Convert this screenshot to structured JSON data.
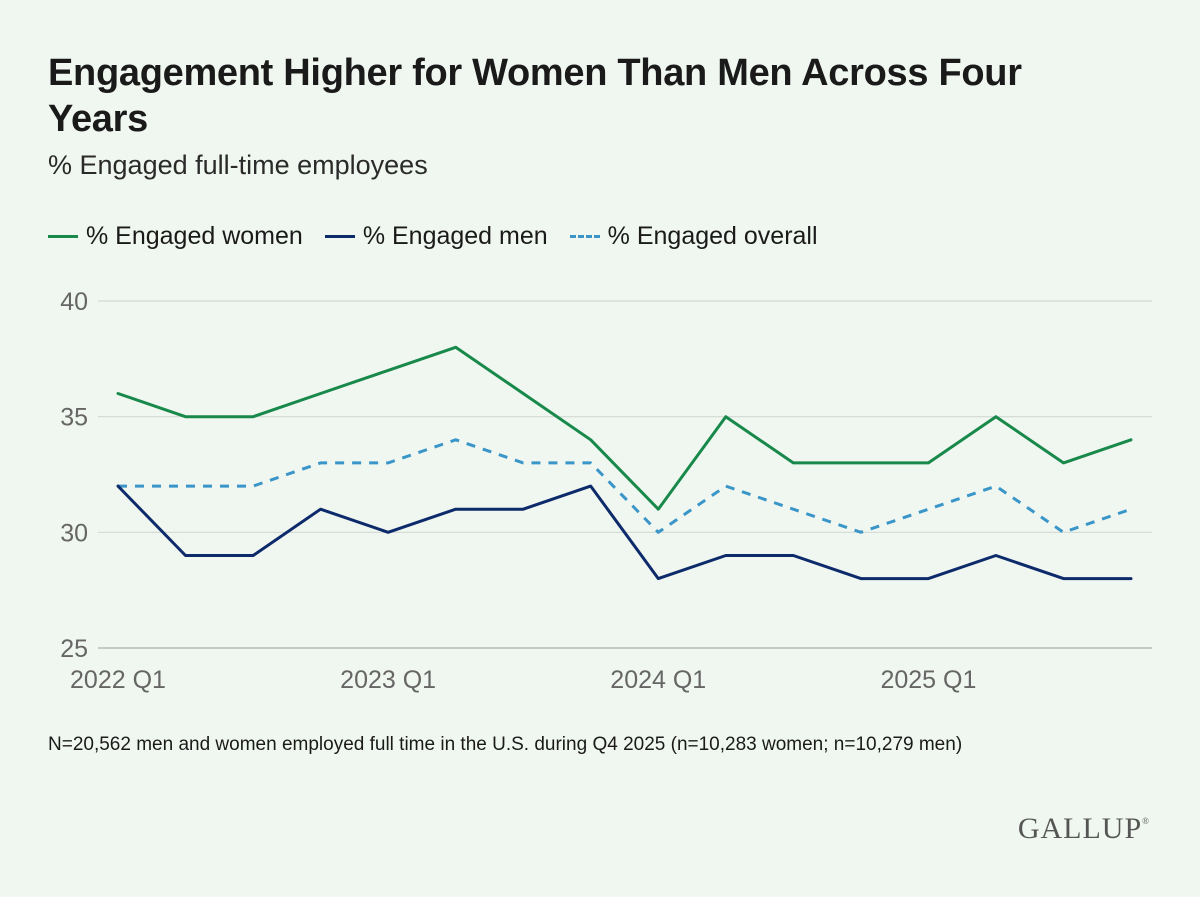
{
  "colors": {
    "women": "#18894a",
    "men": "#0d2a6b",
    "overall": "#3a95c8",
    "grid": "#d3d8d3",
    "tick_text": "#666666",
    "background": "#f0f7f0"
  },
  "chart_data": {
    "type": "line",
    "title": "Engagement Higher for Women Than Men Across Four Years",
    "subtitle": "% Engaged full-time employees",
    "x": [
      "2022 Q1",
      "2022 Q2",
      "2022 Q3",
      "2022 Q4",
      "2023 Q1",
      "2023 Q2",
      "2023 Q3",
      "2023 Q4",
      "2024 Q1",
      "2024 Q2",
      "2024 Q3",
      "2024 Q4",
      "2025 Q1",
      "2025 Q2",
      "2025 Q3",
      "2025 Q4"
    ],
    "x_ticks": [
      "2022 Q1",
      "2023 Q1",
      "2024 Q1",
      "2025 Q1"
    ],
    "x_tick_indices": [
      0,
      4,
      8,
      12
    ],
    "y_ticks": [
      25,
      30,
      35,
      40
    ],
    "ylim": [
      25,
      40
    ],
    "grid": true,
    "legend_position": "top-left",
    "series": [
      {
        "name": "% Engaged women",
        "style": "solid",
        "color_key": "women",
        "values": [
          36,
          35,
          35,
          36,
          37,
          38,
          36,
          34,
          31,
          35,
          33,
          33,
          33,
          35,
          33,
          34
        ]
      },
      {
        "name": "% Engaged men",
        "style": "solid",
        "color_key": "men",
        "values": [
          32,
          29,
          29,
          31,
          30,
          31,
          31,
          32,
          28,
          29,
          29,
          28,
          28,
          29,
          28,
          28
        ]
      },
      {
        "name": "% Engaged overall",
        "style": "dashed",
        "color_key": "overall",
        "values": [
          32,
          32,
          32,
          33,
          33,
          34,
          33,
          33,
          30,
          32,
          31,
          30,
          31,
          32,
          30,
          31
        ]
      }
    ]
  },
  "note": "N=20,562 men and women employed full time in the U.S. during Q4 2025 (n=10,283 women; n=10,279 men)",
  "logo": {
    "text": "GALLUP",
    "mark": "®"
  }
}
